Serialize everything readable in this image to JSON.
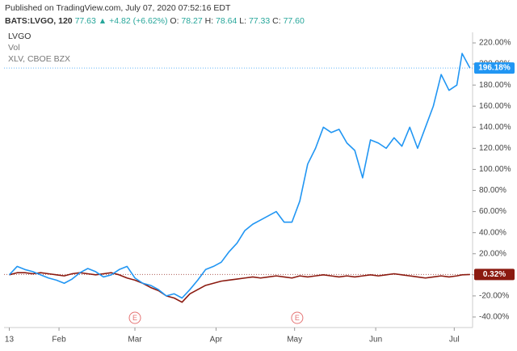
{
  "chart_data": {
    "type": "line",
    "title": "Published on TradingView.com, July 07, 2020 07:52:16 EDT",
    "symbol": "BATS:LVGO, 120",
    "quote": "77.63",
    "arrow": "▲",
    "change": "+4.82 (+6.62%)",
    "ohlc": [
      {
        "key": "O:",
        "value": "78.27"
      },
      {
        "key": "H:",
        "value": "78.64"
      },
      {
        "key": "L:",
        "value": "77.33"
      },
      {
        "key": "C:",
        "value": "77.60"
      }
    ],
    "volume_label": "Vol",
    "events": [
      "E",
      "E"
    ],
    "event_x": [
      48,
      110
    ],
    "x": [
      0,
      3,
      6,
      9,
      12,
      15,
      18,
      21,
      24,
      27,
      30,
      33,
      36,
      39,
      42,
      45,
      48,
      51,
      54,
      57,
      60,
      63,
      66,
      69,
      72,
      75,
      78,
      81,
      84,
      87,
      90,
      93,
      96,
      99,
      102,
      105,
      108,
      111,
      114,
      117,
      120,
      123,
      126,
      129,
      132,
      135,
      138,
      141,
      144,
      147,
      150,
      153,
      156,
      159,
      162,
      165,
      168,
      171,
      173,
      176
    ],
    "xlim": [
      -2,
      177
    ],
    "xticks": [
      {
        "value": 0,
        "label": "13"
      },
      {
        "value": 19,
        "label": "Feb"
      },
      {
        "value": 48,
        "label": "Mar"
      },
      {
        "value": 79,
        "label": "Apr"
      },
      {
        "value": 109,
        "label": "May"
      },
      {
        "value": 140,
        "label": "Jun"
      },
      {
        "value": 170,
        "label": "Jul"
      }
    ],
    "ylim": [
      -50,
      230
    ],
    "yticks": [
      {
        "value": -40,
        "label": "-40.00%"
      },
      {
        "value": -20,
        "label": "-20.00%"
      },
      {
        "value": 0,
        "label": "0.00%"
      },
      {
        "value": 20,
        "label": "20.00%"
      },
      {
        "value": 40,
        "label": "40.00%"
      },
      {
        "value": 60,
        "label": "60.00%"
      },
      {
        "value": 80,
        "label": "80.00%"
      },
      {
        "value": 100,
        "label": "100.00%"
      },
      {
        "value": 120,
        "label": "120.00%"
      },
      {
        "value": 140,
        "label": "140.00%"
      },
      {
        "value": 160,
        "label": "160.00%"
      },
      {
        "value": 180,
        "label": "180.00%"
      },
      {
        "value": 200,
        "label": "200.00%"
      },
      {
        "value": 220,
        "label": "220.00%"
      }
    ],
    "grid": false,
    "series": [
      {
        "name": "LVGO",
        "color": "#2196f3",
        "last_label": "196.18%",
        "values": [
          0,
          8,
          5,
          3,
          0,
          -3,
          -5,
          -8,
          -4,
          2,
          6,
          3,
          -2,
          0,
          5,
          8,
          -3,
          -8,
          -10,
          -14,
          -20,
          -18,
          -22,
          -14,
          -5,
          5,
          8,
          12,
          22,
          30,
          42,
          48,
          52,
          56,
          60,
          50,
          50,
          70,
          105,
          120,
          140,
          135,
          138,
          125,
          118,
          92,
          128,
          125,
          120,
          130,
          122,
          140,
          120,
          140,
          160,
          190,
          175,
          180,
          210,
          196.18
        ]
      },
      {
        "name": "XLV, CBOE BZX",
        "color": "#8b1a10",
        "last_label": "0.32%",
        "values": [
          0,
          2,
          2,
          1,
          2,
          1,
          0,
          -1,
          1,
          2,
          1,
          0,
          1,
          2,
          0,
          -3,
          -5,
          -8,
          -12,
          -15,
          -20,
          -22,
          -26,
          -18,
          -14,
          -10,
          -8,
          -6,
          -5,
          -4,
          -3,
          -2,
          -3,
          -2,
          -1,
          -2,
          -3,
          -1,
          -2,
          -1,
          0,
          -1,
          -2,
          -1,
          -2,
          -1,
          0,
          -1,
          0,
          1,
          0,
          -1,
          -2,
          -3,
          -2,
          -1,
          -2,
          -1,
          0,
          0.32
        ]
      }
    ]
  }
}
